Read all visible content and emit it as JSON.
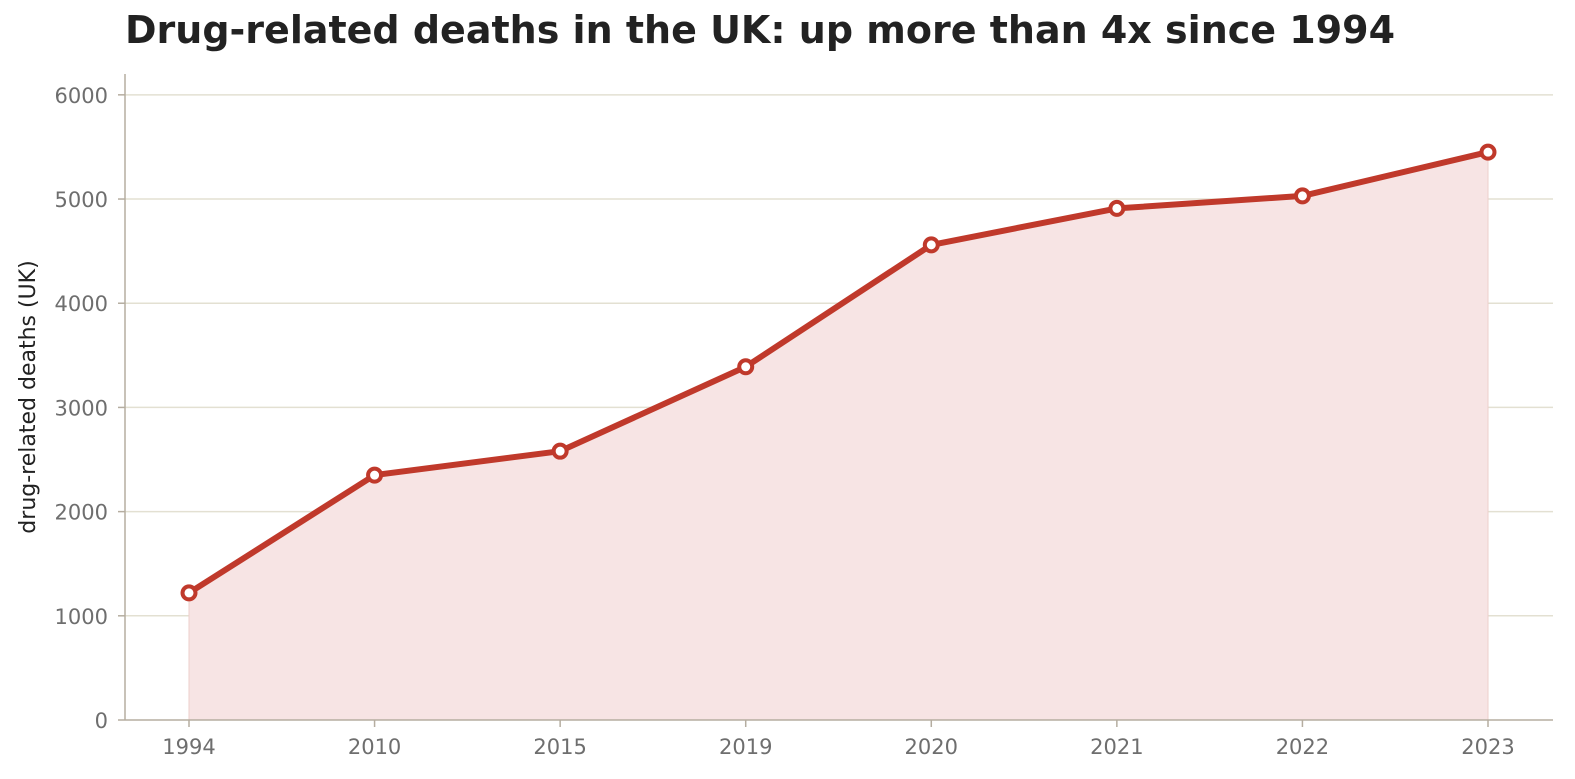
{
  "chart_data": {
    "type": "line",
    "title": "Drug-related deaths in the UK: up more than 4x since 1994",
    "xlabel": "",
    "ylabel": "drug-related deaths (UK)",
    "categories": [
      "1994",
      "2010",
      "2015",
      "2019",
      "2020",
      "2021",
      "2022",
      "2023"
    ],
    "series": [
      {
        "values": [
          1220,
          2350,
          2580,
          3390,
          4560,
          4910,
          5030,
          5450
        ]
      }
    ],
    "ylim": [
      0,
      6200
    ],
    "yticks": [
      0,
      1000,
      2000,
      3000,
      4000,
      5000,
      6000
    ],
    "grid": "horizontal",
    "area_fill": true,
    "colors": {
      "line": "#c0392b",
      "fill": "#f7e4e4",
      "grid": "#e3e0d2",
      "axis": "#b5ada0",
      "marker_face": "#ffffff"
    }
  }
}
